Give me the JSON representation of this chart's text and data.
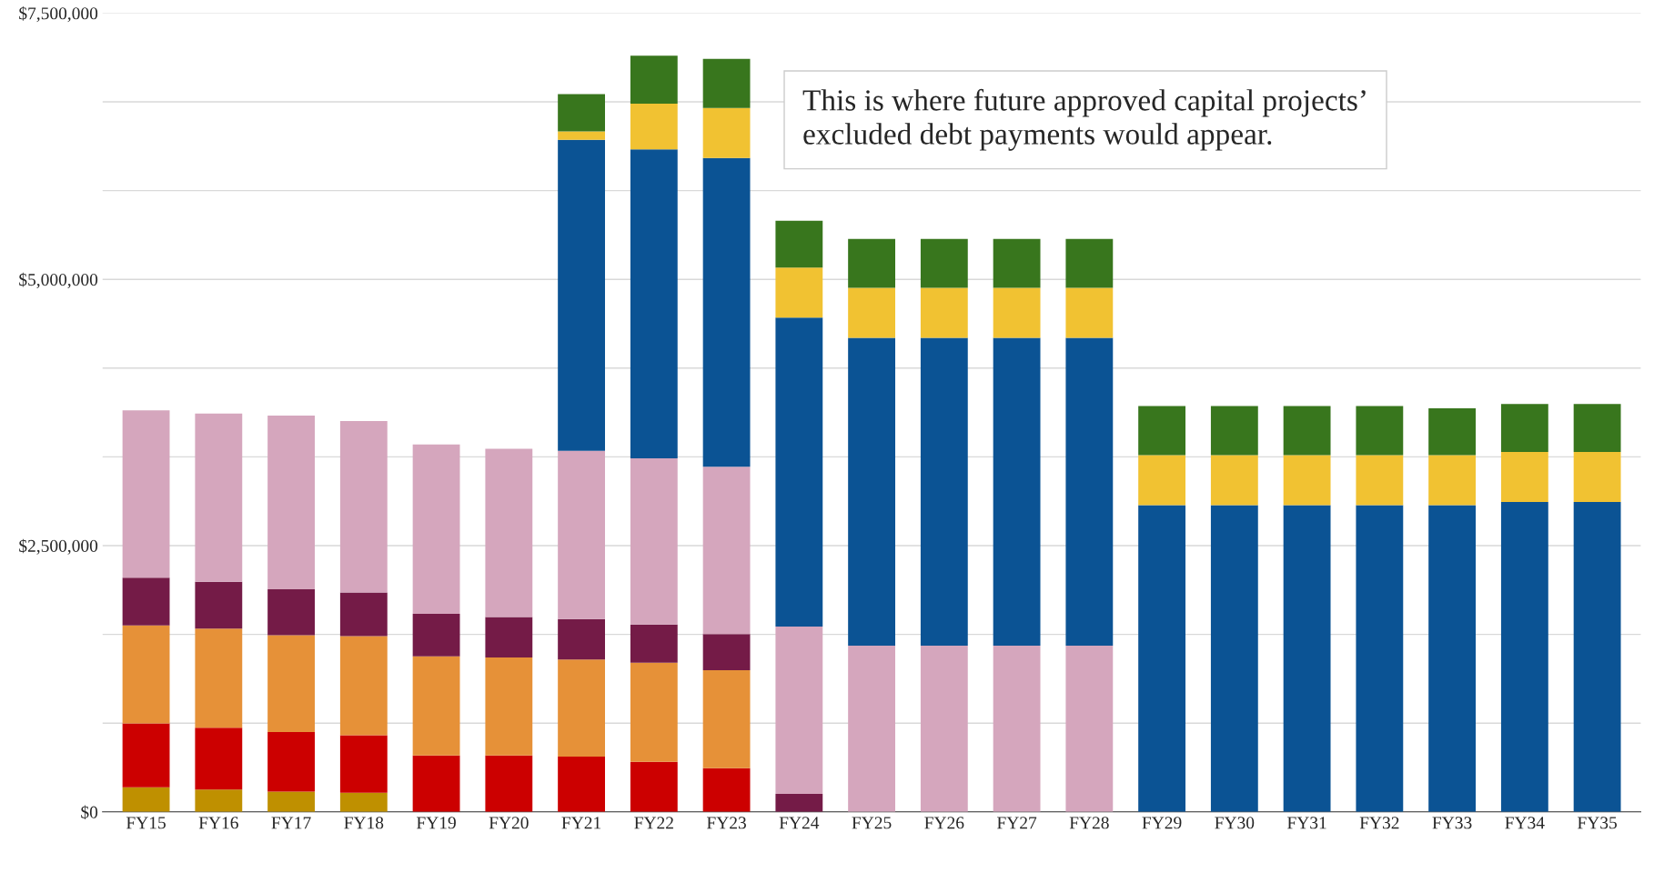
{
  "chart_data": {
    "type": "bar",
    "stacked": true,
    "categories": [
      "FY15",
      "FY16",
      "FY17",
      "FY18",
      "FY19",
      "FY20",
      "FY21",
      "FY22",
      "FY23",
      "FY24",
      "FY25",
      "FY26",
      "FY27",
      "FY28",
      "FY29",
      "FY30",
      "FY31",
      "FY32",
      "FY33",
      "FY34",
      "FY35"
    ],
    "series": [
      {
        "color": "#bf9000",
        "values": [
          230000,
          210000,
          190000,
          180000,
          null,
          null,
          null,
          null,
          null,
          null,
          null,
          null,
          null,
          null,
          null,
          null,
          null,
          null,
          null,
          null,
          null
        ]
      },
      {
        "color": "#cc0000",
        "values": [
          600000,
          580000,
          560000,
          540000,
          530000,
          530000,
          520000,
          470000,
          410000,
          null,
          null,
          null,
          null,
          null,
          null,
          null,
          null,
          null,
          null,
          null,
          null
        ]
      },
      {
        "color": "#e69138",
        "values": [
          920000,
          930000,
          910000,
          930000,
          930000,
          920000,
          910000,
          930000,
          920000,
          null,
          null,
          null,
          null,
          null,
          null,
          null,
          null,
          null,
          null,
          null,
          null
        ]
      },
      {
        "color": "#741b47",
        "values": [
          450000,
          440000,
          430000,
          410000,
          400000,
          380000,
          380000,
          360000,
          340000,
          170000,
          null,
          null,
          null,
          null,
          null,
          null,
          null,
          null,
          null,
          null,
          null
        ]
      },
      {
        "color": "#d5a6bd",
        "values": [
          1570000,
          1580000,
          1630000,
          1610000,
          1590000,
          1580000,
          1580000,
          1560000,
          1570000,
          1570000,
          1560000,
          1560000,
          1560000,
          1560000,
          null,
          null,
          null,
          null,
          null,
          null,
          null
        ]
      },
      {
        "color": "#0b5394",
        "values": [
          null,
          null,
          null,
          null,
          null,
          null,
          2920000,
          2900000,
          2900000,
          2900000,
          2890000,
          2890000,
          2890000,
          2890000,
          2880000,
          2880000,
          2880000,
          2880000,
          2880000,
          2910000,
          2910000
        ]
      },
      {
        "color": "#f1c232",
        "values": [
          null,
          null,
          null,
          null,
          null,
          null,
          80000,
          430000,
          470000,
          470000,
          470000,
          470000,
          470000,
          470000,
          470000,
          470000,
          470000,
          470000,
          470000,
          470000,
          470000
        ]
      },
      {
        "color": "#38761d",
        "values": [
          null,
          null,
          null,
          null,
          null,
          null,
          350000,
          450000,
          460000,
          440000,
          460000,
          460000,
          460000,
          460000,
          460000,
          460000,
          460000,
          460000,
          440000,
          450000,
          450000
        ]
      }
    ],
    "ylim": [
      0,
      7500000
    ],
    "yticks": [
      {
        "value": 0,
        "label": "$0"
      },
      {
        "value": 833333,
        "label": null
      },
      {
        "value": 1666667,
        "label": null
      },
      {
        "value": 2500000,
        "label": "$2,500,000"
      },
      {
        "value": 3333333,
        "label": null
      },
      {
        "value": 4166667,
        "label": null
      },
      {
        "value": 5000000,
        "label": "$5,000,000"
      },
      {
        "value": 5833333,
        "label": null
      },
      {
        "value": 6666667,
        "label": null
      },
      {
        "value": 7500000,
        "label": "$7,500,000"
      }
    ],
    "grid": "y",
    "annotations": [
      "This is where future approved capital projects’ excluded debt payments would appear."
    ]
  }
}
